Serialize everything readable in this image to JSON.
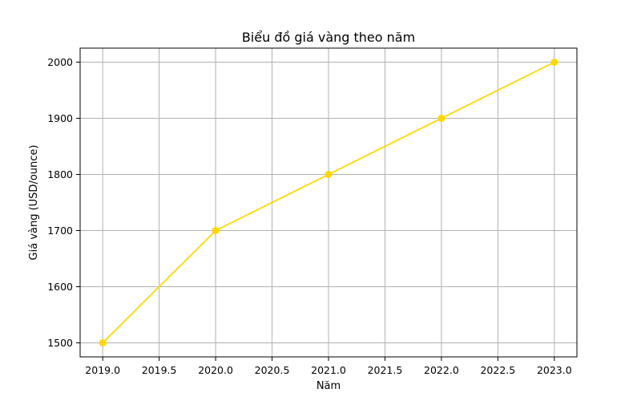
{
  "chart_data": {
    "type": "line",
    "title": "Biểu đồ giá vàng theo năm",
    "xlabel": "Năm",
    "ylabel": "Giá vàng (USD/ounce)",
    "x": [
      2019,
      2020,
      2021,
      2022,
      2023
    ],
    "series": [
      {
        "values": [
          1500,
          1700,
          1800,
          1900,
          2000
        ],
        "color": "#ffd700",
        "marker": "circle"
      }
    ],
    "xlim": [
      2018.8,
      2023.2
    ],
    "ylim": [
      1475,
      2025
    ],
    "xticks": [
      2019.0,
      2019.5,
      2020.0,
      2020.5,
      2021.0,
      2021.5,
      2022.0,
      2022.5,
      2023.0
    ],
    "xtick_labels": [
      "2019.0",
      "2019.5",
      "2020.0",
      "2020.5",
      "2021.0",
      "2021.5",
      "2022.0",
      "2022.5",
      "2023.0"
    ],
    "yticks": [
      1500,
      1600,
      1700,
      1800,
      1900,
      2000
    ],
    "ytick_labels": [
      "1500",
      "1600",
      "1700",
      "1800",
      "1900",
      "2000"
    ],
    "grid": true,
    "legend": false
  }
}
